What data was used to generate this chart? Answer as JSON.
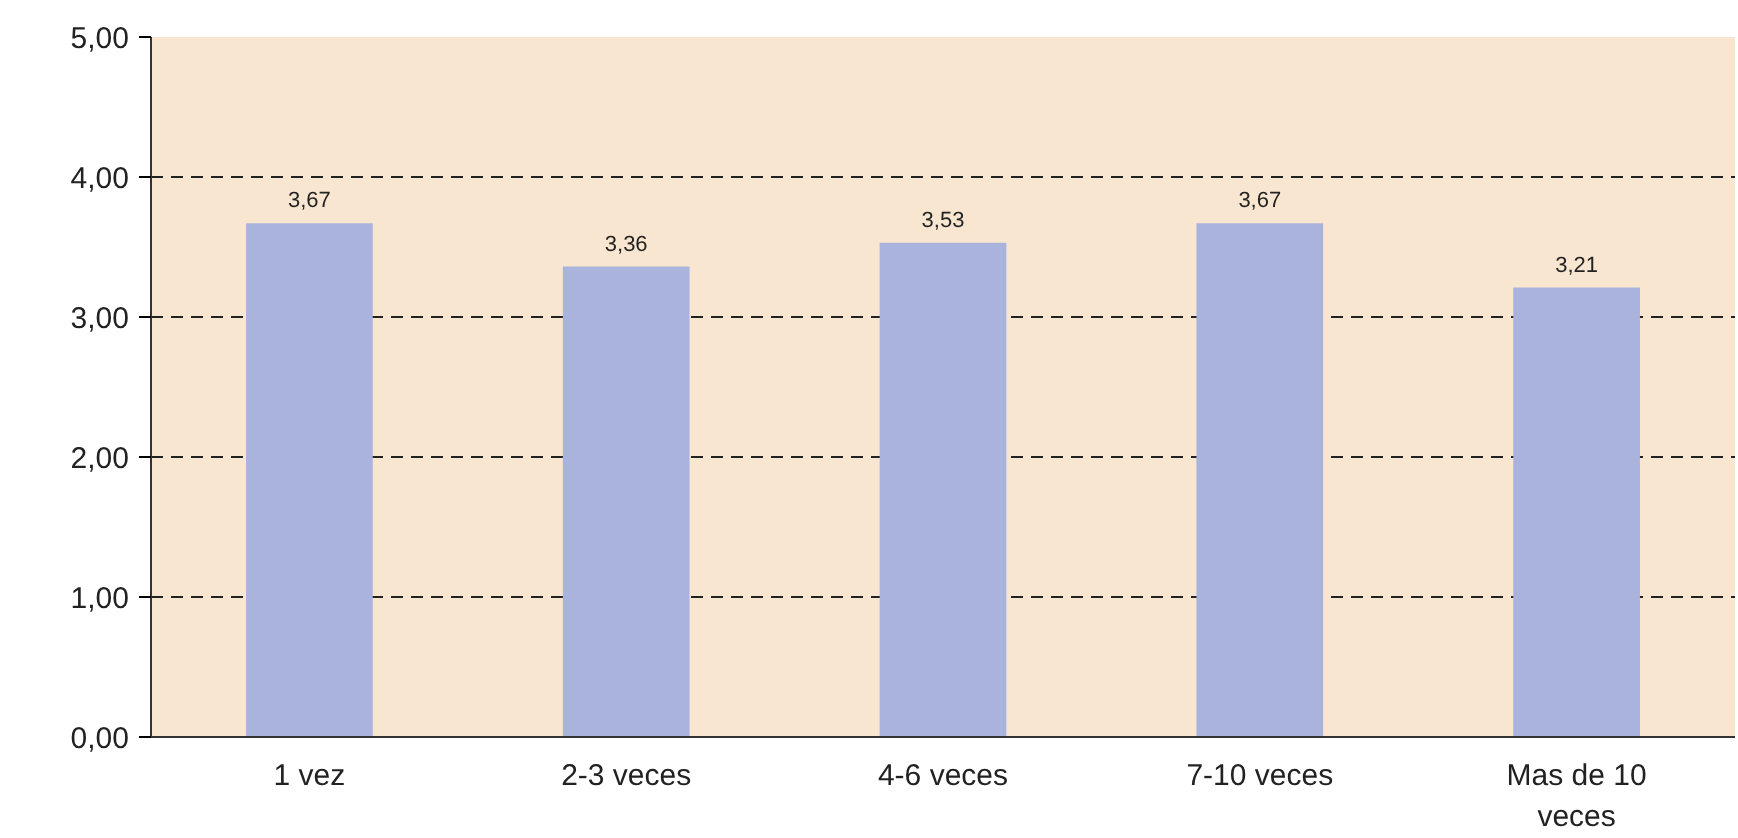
{
  "chart_data": {
    "type": "bar",
    "categories": [
      "1 vez",
      "2-3 veces",
      "4-6 veces",
      "7-10 veces",
      "Mas de 10 veces"
    ],
    "values": [
      3.67,
      3.36,
      3.53,
      3.67,
      3.21
    ],
    "value_labels": [
      "3,67",
      "3,36",
      "3,53",
      "3,67",
      "3,21"
    ],
    "color": "#aab3db",
    "ylim": [
      0,
      5
    ],
    "yticks": [
      {
        "value": 0,
        "label": "0,00"
      },
      {
        "value": 1,
        "label": "1,00"
      },
      {
        "value": 2,
        "label": "2,00"
      },
      {
        "value": 3,
        "label": "3,00"
      },
      {
        "value": 4,
        "label": "4,00"
      },
      {
        "value": 5,
        "label": "5,00"
      }
    ],
    "grid": "y",
    "line_style": "dashed"
  }
}
